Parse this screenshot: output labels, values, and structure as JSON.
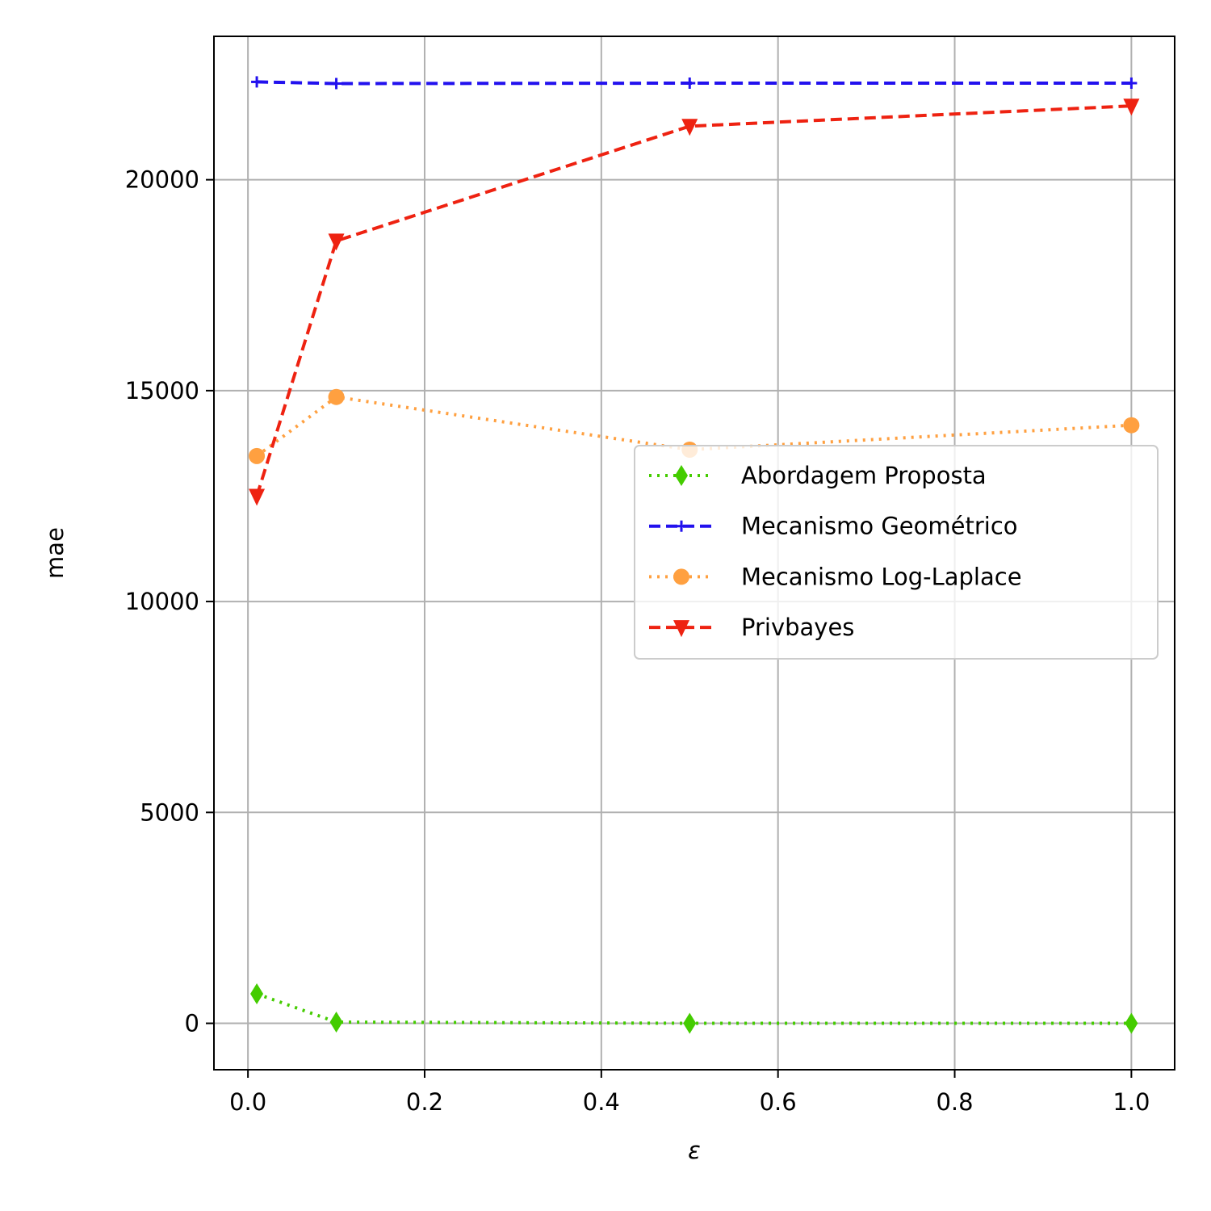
{
  "chart_data": {
    "type": "line",
    "xlabel": "ε",
    "ylabel": "mae",
    "xlim": [
      -0.0385,
      1.049
    ],
    "ylim": [
      -1100,
      23400
    ],
    "xticks": [
      0.0,
      0.2,
      0.4,
      0.6,
      0.8,
      1.0
    ],
    "xtick_labels": [
      "0.0",
      "0.2",
      "0.4",
      "0.6",
      "0.8",
      "1.0"
    ],
    "yticks": [
      0,
      5000,
      10000,
      15000,
      20000
    ],
    "ytick_labels": [
      "0",
      "5000",
      "10000",
      "15000",
      "20000"
    ],
    "grid": true,
    "legend_position": "center-right",
    "x": [
      0.01,
      0.1,
      0.5,
      1.0
    ],
    "series": [
      {
        "name": "Abordagem Proposta",
        "values": [
          700,
          30,
          0,
          0
        ],
        "color": "#44cc00",
        "linestyle": "dotted",
        "marker": "thin-diamond"
      },
      {
        "name": "Mecanismo Geométrico",
        "values": [
          22320,
          22280,
          22290,
          22290
        ],
        "color": "#2211ee",
        "linestyle": "dashed",
        "marker": "plus"
      },
      {
        "name": "Mecanismo Log-Laplace",
        "values": [
          13450,
          14850,
          13600,
          14180
        ],
        "color": "#ffa040",
        "linestyle": "dotted",
        "marker": "circle"
      },
      {
        "name": "Privbayes",
        "values": [
          12500,
          18550,
          21270,
          21750
        ],
        "color": "#ee2211",
        "linestyle": "dashed",
        "marker": "triangle-down"
      }
    ]
  }
}
